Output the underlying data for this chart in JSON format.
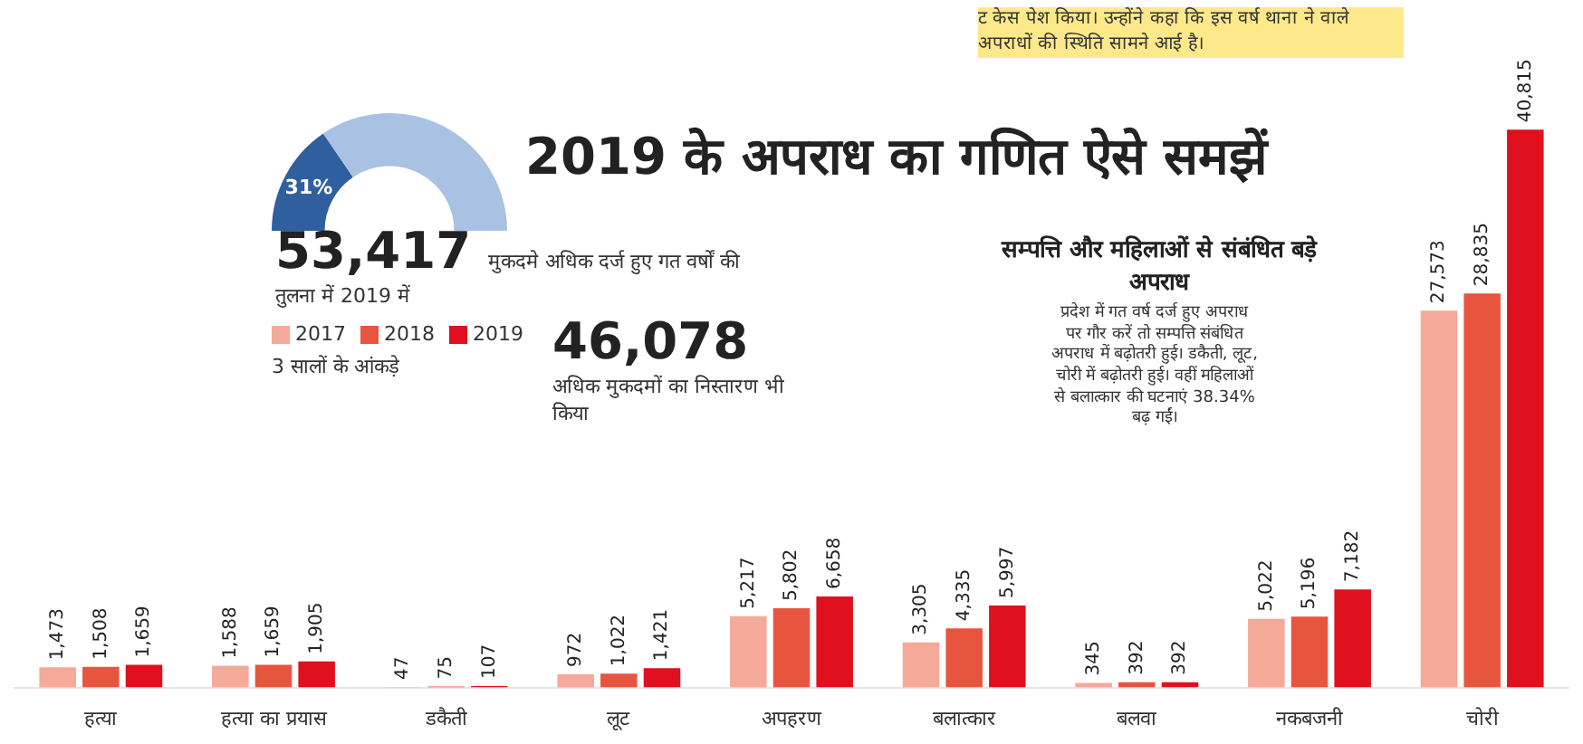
{
  "chart_data": [
    {
      "type": "donut",
      "categories": [
        null,
        null
      ],
      "values": [
        31,
        69
      ],
      "colors": [
        "#2f5f9e",
        "#a9c1e3"
      ],
      "value_labels": [
        "31%",
        null
      ],
      "legend": false
    },
    {
      "type": "bar",
      "title": "2019 के अपराध का गणित ऐसे समझें",
      "subtitle": "सम्पत्ति और महिलाओं से संबंधित बड़े अपराध",
      "legend_title": "3 सालों के आंकड़े",
      "categories": [
        "हत्या",
        "हत्या का प्रयास",
        "डकैती",
        "लूट",
        "अपहरण",
        "बलात्कार",
        "बलवा",
        "नकबजनी",
        "चोरी"
      ],
      "series": [
        {
          "name": "2017",
          "color": "#f4a999",
          "values": [
            1473,
            1588,
            47,
            972,
            5217,
            3305,
            345,
            5022,
            27573
          ],
          "value_labels": [
            "1,473",
            "1,588",
            "47",
            "972",
            "5,217",
            "3,305",
            "345",
            "5,022",
            "27,573"
          ]
        },
        {
          "name": "2018",
          "color": "#e8553f",
          "values": [
            1508,
            1659,
            75,
            1022,
            5802,
            4335,
            392,
            5196,
            28835
          ],
          "value_labels": [
            "1,508",
            "1,659",
            "75",
            "1,022",
            "5,802",
            "4,335",
            "392",
            "5,196",
            "28,835"
          ]
        },
        {
          "name": "2019",
          "color": "#e0101e",
          "values": [
            1659,
            1905,
            107,
            1421,
            6658,
            5997,
            392,
            7182,
            40815
          ],
          "value_labels": [
            "1,659",
            "1,905",
            "107",
            "1,421",
            "6,658",
            "5,997",
            "392",
            "7,182",
            "40,815"
          ]
        }
      ],
      "tick_labels": "x",
      "legend": "top left",
      "grid": false,
      "annotations": [
        "53,417 मुकदमे अधिक दर्ज हुए गत वर्षों की तुलना में 2019 में",
        "46,078 अधिक मुकदमों का निस्तारण भी किया",
        "प्रदेश में गत वर्ष दर्ज हुए अपराध पर गौर करें तो सम्पत्ति संबंधित अपराध में बढ़ोतरी हुई। डकैती, लूट, चोरी में बढ़ोतरी हुई। वहीं महिलाओं से बलात्कार की घटनाएं 38.34% बढ़ गईं।",
        "ट केस पेश किया। उन्होंने कहा कि इस वर्ष थाना ने वाले अपराधों की स्थिति सामने आई है।"
      ]
    }
  ]
}
